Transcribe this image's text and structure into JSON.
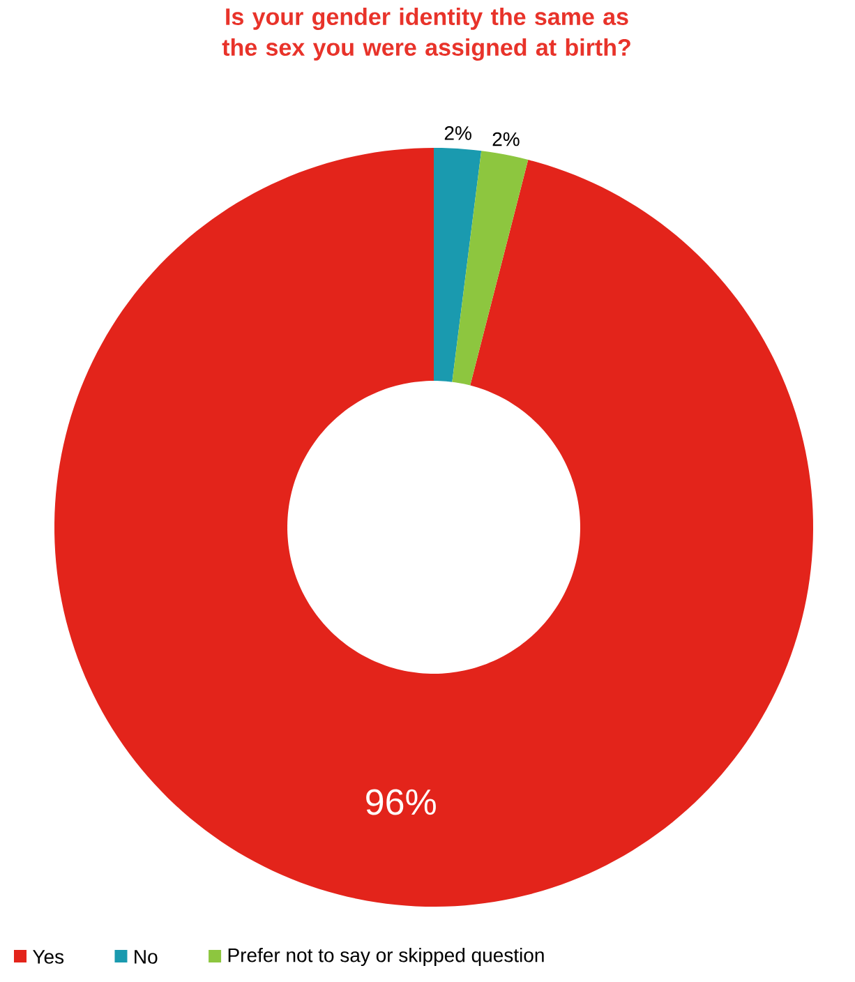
{
  "chart_data": {
    "type": "donut",
    "title": "Is your gender identity the same as the sex you were assigned at birth?",
    "categories": [
      "Yes",
      "No",
      "Prefer not to say or skipped question"
    ],
    "values": [
      96,
      2,
      2
    ],
    "value_labels": [
      "96%",
      "2%",
      "2%"
    ],
    "colors": [
      "#e3241b",
      "#1a9aaf",
      "#8dc63f"
    ],
    "legend": "bottom"
  }
}
